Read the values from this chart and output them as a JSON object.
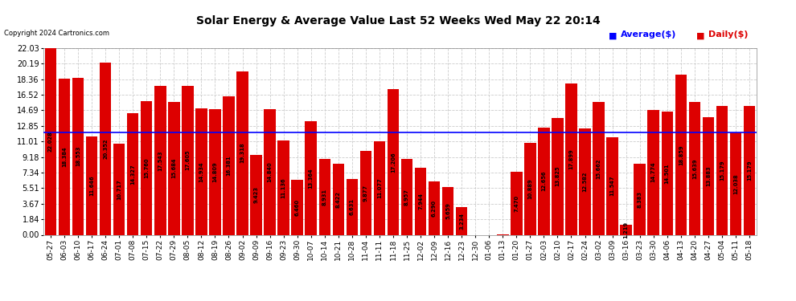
{
  "title": "Solar Energy & Average Value Last 52 Weeks Wed May 22 20:14",
  "copyright": "Copyright 2024 Cartronics.com",
  "legend_avg": "Average($)",
  "legend_daily": "Daily($)",
  "avg_line_value": 12.038,
  "bar_color": "#dd0000",
  "avg_line_color": "#0000ff",
  "background_color": "#ffffff",
  "grid_color": "#aaaaaa",
  "yticks": [
    0.0,
    1.84,
    3.67,
    5.51,
    7.34,
    9.18,
    11.01,
    12.85,
    14.69,
    16.52,
    18.36,
    20.19,
    22.03
  ],
  "xlabel_rotation": 90,
  "categories": [
    "05-27",
    "06-03",
    "06-10",
    "06-17",
    "06-24",
    "07-01",
    "07-08",
    "07-15",
    "07-22",
    "07-29",
    "08-05",
    "08-12",
    "08-19",
    "08-26",
    "09-02",
    "09-09",
    "09-16",
    "09-23",
    "09-30",
    "10-07",
    "10-14",
    "10-21",
    "10-28",
    "11-04",
    "11-11",
    "11-18",
    "11-25",
    "12-02",
    "12-09",
    "12-16",
    "12-23",
    "12-30",
    "01-06",
    "01-13",
    "01-20",
    "01-27",
    "02-03",
    "02-10",
    "02-17",
    "02-24",
    "03-02",
    "03-09",
    "03-16",
    "03-23",
    "03-30",
    "04-06",
    "04-13",
    "04-20",
    "04-27",
    "05-04",
    "05-11",
    "05-18"
  ],
  "values": [
    22.028,
    18.384,
    18.553,
    11.646,
    20.352,
    10.717,
    14.327,
    15.76,
    17.543,
    15.684,
    17.605,
    14.934,
    14.809,
    16.381,
    19.318,
    9.423,
    14.84,
    11.136,
    6.46,
    13.364,
    8.931,
    8.422,
    6.631,
    9.877,
    11.077,
    17.206,
    8.957,
    7.944,
    6.29,
    5.659,
    3.234,
    0.0,
    0.0,
    0.013,
    7.47,
    10.889,
    12.656,
    13.825,
    17.899,
    12.582,
    15.662,
    11.547,
    1.219,
    8.383,
    14.774,
    14.501,
    18.859,
    15.639,
    13.883,
    15.179,
    12.038,
    15.179
  ]
}
